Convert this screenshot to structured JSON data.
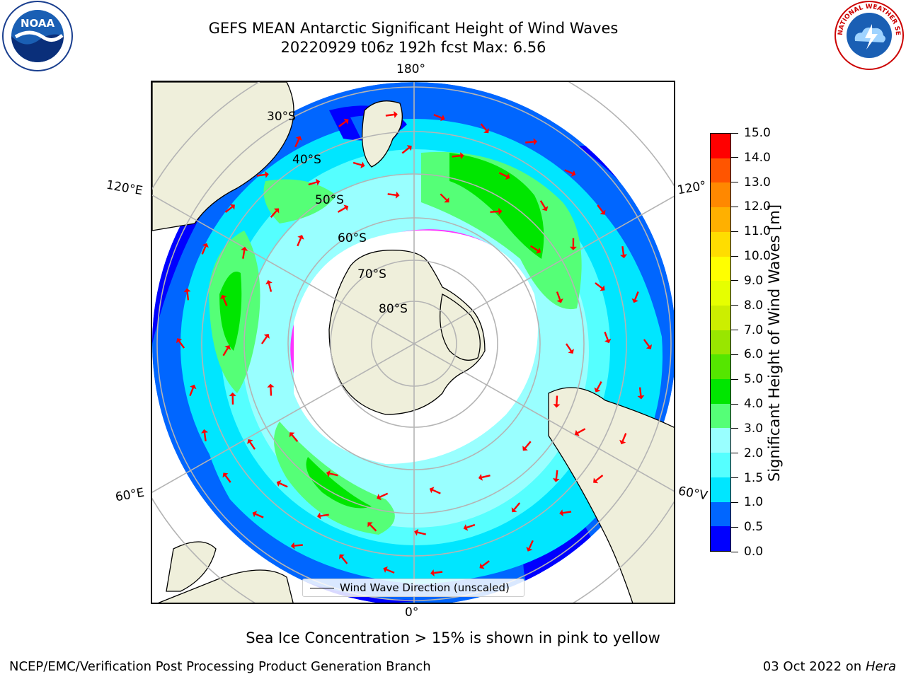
{
  "title": {
    "line1": "GEFS MEAN Antarctic Significant Height of Wind Waves",
    "line2": "20220929 t06z 192h fcst   Max: 6.56"
  },
  "logos": {
    "noaa": "NOAA",
    "nws": "NATIONAL WEATHER SERVICE"
  },
  "map": {
    "longitude_labels": {
      "top": "180°",
      "bottom": "0°",
      "left_upper": "120°E",
      "left_lower": "60°E",
      "right_upper": "120°",
      "right_lower": "60°V"
    },
    "latitude_labels": [
      "30°S",
      "40°S",
      "50°S",
      "60°S",
      "70°S",
      "80°S"
    ],
    "ocean_colors": [
      "#0000ff",
      "#0066ff",
      "#00e6ff",
      "#55ffff",
      "#99ffff",
      "#55ff77",
      "#00e600"
    ],
    "land_color": "#efefdb",
    "ice_colors": [
      "#ff33ff",
      "#ffb000"
    ],
    "arrow_color": "#ff0000"
  },
  "legend": {
    "label": "Wind Wave Direction (unscaled)"
  },
  "colorbar": {
    "label": "Significant Height of Wind Waves [m]",
    "ticks": [
      "0.0",
      "0.5",
      "1.0",
      "1.5",
      "2.0",
      "3.0",
      "4.0",
      "5.0",
      "6.0",
      "7.0",
      "8.0",
      "9.0",
      "10.0",
      "11.0",
      "12.0",
      "13.0",
      "14.0",
      "15.0"
    ],
    "colors": [
      "#0000ff",
      "#0066ff",
      "#00e6ff",
      "#55ffff",
      "#99ffff",
      "#55ff77",
      "#00e600",
      "#55e600",
      "#99e600",
      "#ccee00",
      "#e6ff00",
      "#ffff00",
      "#ffdd00",
      "#ffb000",
      "#ff8800",
      "#ff5500",
      "#ff0000"
    ]
  },
  "notes": {
    "ice": "Sea Ice Concentration > 15% is shown in pink to yellow"
  },
  "footer": {
    "left": "NCEP/EMC/Verification Post Processing Product Generation Branch",
    "right_date": "03 Oct 2022 on ",
    "right_host": "Hera"
  }
}
